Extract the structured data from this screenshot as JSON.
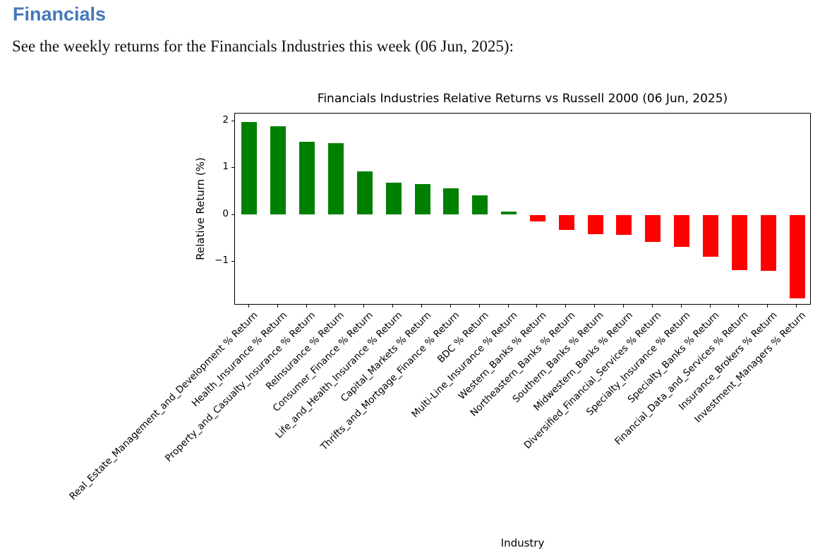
{
  "page": {
    "heading": "Financials",
    "subtitle": "See the weekly returns for the Financials Industries this week (06 Jun, 2025):",
    "heading_color": "#4478b9"
  },
  "chart_data": {
    "type": "bar",
    "title": "Financials Industries Relative Returns vs Russell 2000 (06 Jun, 2025)",
    "xlabel": "Industry",
    "ylabel": "Relative Return (%)",
    "ylim": [
      -1.93,
      2.16
    ],
    "yticks": [
      2,
      1,
      0,
      -1
    ],
    "grid": false,
    "legend": false,
    "x_tick_rotation": 45,
    "positive_color": "#008000",
    "negative_color": "#ff0000",
    "categories": [
      "Real_Estate_Management_and_Development % Return",
      "Health_Insurance % Return",
      "Property_and_Casualty_Insurance % Return",
      "ReInsurance % Return",
      "Consumer_Finance % Return",
      "Life_and_Health_Insurance % Return",
      "Capital_Markets % Return",
      "Thrifts_and_Mortgage_Finance % Return",
      "BDC % Return",
      "Multi-Line_Insurance % Return",
      "Western_Banks % Return",
      "Northeastern_Banks % Return",
      "Southern_Banks % Return",
      "Midwestern_Banks % Return",
      "Diversified_Financial_Services % Return",
      "Specialty_Insurance % Return",
      "Specialty_Banks % Return",
      "Financial_Data_and_Services % Return",
      "Insurance_Brokers % Return",
      "Investment_Managers % Return"
    ],
    "values": [
      1.98,
      1.88,
      1.55,
      1.53,
      0.93,
      0.68,
      0.65,
      0.56,
      0.42,
      0.07,
      -0.15,
      -0.33,
      -0.42,
      -0.43,
      -0.58,
      -0.69,
      -0.9,
      -1.18,
      -1.19,
      -1.78
    ]
  }
}
